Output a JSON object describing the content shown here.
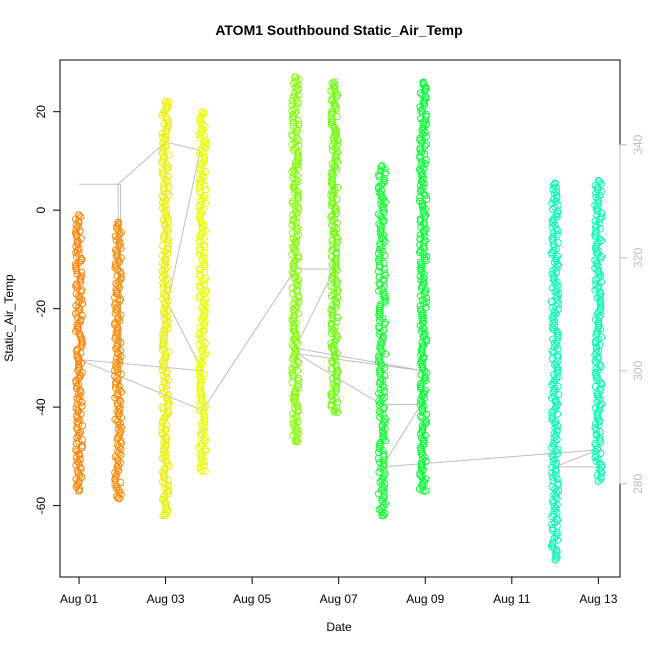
{
  "chart_data": {
    "type": "scatter",
    "title": "ATOM1 Southbound Static_Air_Temp",
    "xlabel": "Date",
    "ylabel": "Static_Air_Temp",
    "x_ticks": [
      "Aug 01",
      "Aug 03",
      "Aug 05",
      "Aug 07",
      "Aug 09",
      "Aug 11",
      "Aug 13"
    ],
    "x_tick_days": [
      1,
      3,
      5,
      7,
      9,
      11,
      13
    ],
    "xlim_days": [
      0.56,
      13.5
    ],
    "ylim": [
      -74.5,
      30.5
    ],
    "y_ticks": [
      20,
      0,
      -20,
      -40,
      -60
    ],
    "y2_ticks": [
      340,
      320,
      300,
      280
    ],
    "y2lim": [
      263.5,
      355
    ],
    "marker": "open-circle",
    "grid": false,
    "legend": "none",
    "segments": [
      {
        "day": 1.0,
        "min": -57.0,
        "max": -1.0,
        "color": "#ff8000"
      },
      {
        "day": 1.9,
        "min": -58.5,
        "max": -2.5,
        "color": "#ff8800"
      },
      {
        "day": 3.0,
        "min": -62.0,
        "max": 22.0,
        "color": "#e8f000"
      },
      {
        "day": 3.85,
        "min": -53.0,
        "max": 20.0,
        "color": "#e8ff00"
      },
      {
        "day": 6.0,
        "min": -47.0,
        "max": 27.0,
        "color": "#80ff00"
      },
      {
        "day": 6.9,
        "min": -41.0,
        "max": 26.0,
        "color": "#66ff00"
      },
      {
        "day": 8.0,
        "min": -62.0,
        "max": 9.0,
        "color": "#10ff30"
      },
      {
        "day": 8.95,
        "min": -57.0,
        "max": 26.0,
        "color": "#00ff30"
      },
      {
        "day": 12.0,
        "min": -71.0,
        "max": 5.5,
        "color": "#00ffb0"
      },
      {
        "day": 13.0,
        "min": -55.0,
        "max": 6.0,
        "color": "#00ffb0"
      }
    ],
    "secondary_line": {
      "color": "#bdbdbd",
      "points": [
        [
          1.0,
          333
        ],
        [
          1.96,
          333
        ],
        [
          1.96,
          290
        ],
        [
          1.9,
          333
        ],
        [
          3.0,
          340.5
        ],
        [
          3.8,
          339
        ],
        [
          3.05,
          312
        ],
        [
          3.85,
          300
        ],
        [
          1.0,
          302
        ],
        [
          3.85,
          293
        ],
        [
          6.0,
          318
        ],
        [
          6.9,
          318
        ],
        [
          6.0,
          304
        ],
        [
          8.95,
          300
        ],
        [
          6.05,
          303
        ],
        [
          6.9,
          299
        ],
        [
          8.0,
          294
        ],
        [
          8.9,
          294
        ],
        [
          8.0,
          283
        ],
        [
          13.0,
          286
        ],
        [
          12.0,
          283
        ],
        [
          13.0,
          283
        ]
      ]
    }
  }
}
